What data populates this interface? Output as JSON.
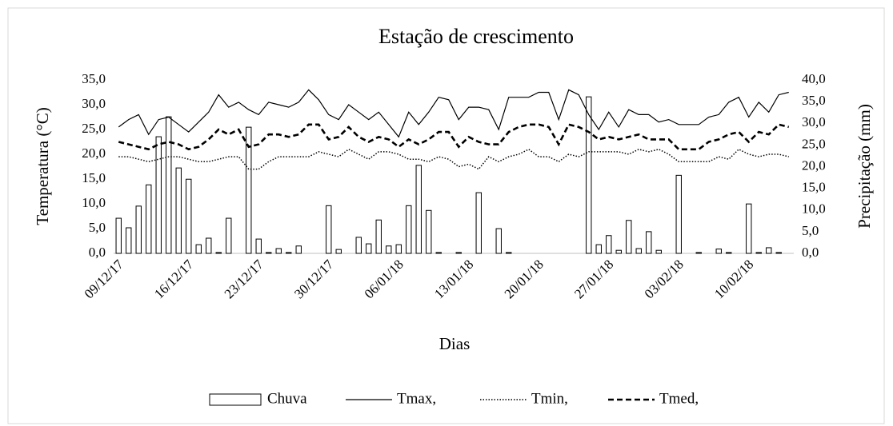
{
  "chart_data": {
    "type": "bar-line",
    "title": "Estação de crescimento",
    "x_label": "Dias",
    "y_label": "Temperatura (°C)",
    "y2_label": "Precipitação (mm)",
    "categories": [
      "09/12/17",
      null,
      null,
      null,
      null,
      null,
      null,
      "16/12/17",
      null,
      null,
      null,
      null,
      null,
      null,
      "23/12/17",
      null,
      null,
      null,
      null,
      null,
      null,
      "30/12/17",
      null,
      null,
      null,
      null,
      null,
      null,
      "06/01/18",
      null,
      null,
      null,
      null,
      null,
      null,
      "13/01/18",
      null,
      null,
      null,
      null,
      null,
      null,
      "20/01/18",
      null,
      null,
      null,
      null,
      null,
      null,
      "27/01/18",
      null,
      null,
      null,
      null,
      null,
      null,
      "03/02/18",
      null,
      null,
      null,
      null,
      null,
      null,
      "10/02/18",
      null,
      null,
      null,
      null
    ],
    "ylim": [
      0,
      35
    ],
    "yticks": [
      {
        "value": 0,
        "label": "0,0"
      },
      {
        "value": 5,
        "label": "5,0"
      },
      {
        "value": 10,
        "label": "10,0"
      },
      {
        "value": 15,
        "label": "15,0"
      },
      {
        "value": 20,
        "label": "20,0"
      },
      {
        "value": 25,
        "label": "25,0"
      },
      {
        "value": 30,
        "label": "30,0"
      },
      {
        "value": 35,
        "label": "35,0"
      }
    ],
    "y2lim": [
      0,
      40
    ],
    "y2ticks": [
      {
        "value": 0,
        "label": "0,0"
      },
      {
        "value": 5,
        "label": "5,0"
      },
      {
        "value": 10,
        "label": "10,0"
      },
      {
        "value": 15,
        "label": "15,0"
      },
      {
        "value": 20,
        "label": "20,0"
      },
      {
        "value": 25,
        "label": "25,0"
      },
      {
        "value": 30,
        "label": "30,0"
      },
      {
        "value": 35,
        "label": "35,0"
      },
      {
        "value": 40,
        "label": "40,0"
      }
    ],
    "legend": "bottom",
    "series": [
      {
        "name": "Chuva",
        "type": "bar",
        "axis": "y2",
        "color": "#ffffff",
        "values": [
          8.1,
          5.9,
          10.9,
          15.8,
          26.9,
          31.5,
          19.7,
          17.1,
          2.0,
          3.5,
          0.2,
          8.1,
          0,
          29.1,
          3.3,
          0.2,
          1.1,
          0.2,
          1.7,
          0,
          0,
          11.0,
          0.9,
          0,
          3.7,
          2.2,
          7.7,
          1.7,
          2.0,
          11.0,
          20.3,
          9.9,
          0.2,
          0,
          0.2,
          0,
          14.0,
          0,
          5.7,
          0.2,
          0,
          0,
          0,
          0,
          0,
          0,
          0,
          36.1,
          2.0,
          4.1,
          0.7,
          7.6,
          1.1,
          5.0,
          0.7,
          0,
          18.0,
          0,
          0.2,
          0,
          1.0,
          0.2,
          0,
          11.4,
          0.2,
          1.3,
          0.2,
          0
        ]
      },
      {
        "name": "Tmax,",
        "type": "line",
        "style": "solid",
        "color": "#000000",
        "values": [
          25.5,
          27,
          28,
          24,
          27,
          27.5,
          26,
          24.5,
          26.5,
          28.5,
          32,
          29.5,
          30.5,
          29,
          28,
          30.5,
          30,
          29.5,
          30.5,
          33,
          31,
          28,
          27,
          30,
          28.5,
          27,
          28.5,
          26,
          23.5,
          28.5,
          26,
          28.5,
          31.5,
          31,
          27,
          29.5,
          29.5,
          29,
          25,
          31.5,
          31.5,
          31.5,
          32.5,
          32.5,
          27,
          33,
          32,
          28,
          25,
          28.5,
          25.5,
          29,
          28,
          28,
          26.5,
          27,
          26,
          26,
          26,
          27.5,
          28,
          30.5,
          31.5,
          27.5,
          30.5,
          28.5,
          32,
          32.5
        ]
      },
      {
        "name": "Tmin,",
        "type": "line",
        "style": "dotted",
        "color": "#000000",
        "values": [
          19.5,
          19.5,
          19,
          18.5,
          19,
          19.5,
          19.5,
          19,
          18.5,
          18.5,
          19,
          19.5,
          19.5,
          17,
          17,
          18.5,
          19.5,
          19.5,
          19.5,
          19.5,
          20.5,
          20,
          19.5,
          21,
          20,
          19,
          20.5,
          20.5,
          20,
          19,
          19,
          18.5,
          19.5,
          19,
          17.5,
          18,
          17,
          19.5,
          18.5,
          19.5,
          20,
          21,
          19.5,
          19.5,
          18.5,
          20,
          19.5,
          20.5,
          20.5,
          20.5,
          20.5,
          20,
          21,
          20.5,
          21,
          20,
          18.5,
          18.5,
          18.5,
          18.5,
          19.5,
          19,
          21,
          20,
          19.5,
          20,
          20,
          19.5
        ]
      },
      {
        "name": "Tmed,",
        "type": "line",
        "style": "dashed",
        "color": "#000000",
        "values": [
          22.5,
          22,
          21.5,
          21,
          22,
          22.5,
          22,
          21,
          21.5,
          23,
          25,
          24,
          25,
          21.5,
          22,
          24,
          24,
          23.5,
          24,
          26,
          26,
          23,
          23.5,
          25.5,
          23.5,
          22.5,
          23.5,
          23,
          21.5,
          23,
          22,
          23,
          24.5,
          24.5,
          21.5,
          23.5,
          22.5,
          22,
          22,
          24.5,
          25.5,
          26,
          26,
          25.5,
          22,
          26,
          25.5,
          24.5,
          23,
          23.5,
          23,
          23.5,
          24,
          23,
          23,
          23,
          21,
          21,
          21,
          22.5,
          23,
          24,
          24.5,
          22.5,
          24.5,
          24,
          26,
          25.5
        ]
      }
    ]
  }
}
